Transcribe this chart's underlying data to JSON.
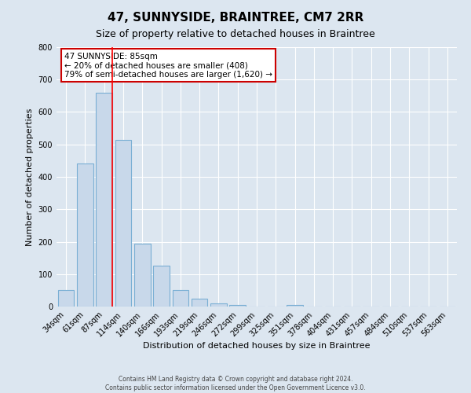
{
  "title": "47, SUNNYSIDE, BRAINTREE, CM7 2RR",
  "subtitle": "Size of property relative to detached houses in Braintree",
  "xlabel": "Distribution of detached houses by size in Braintree",
  "ylabel": "Number of detached properties",
  "bar_labels": [
    "34sqm",
    "61sqm",
    "87sqm",
    "114sqm",
    "140sqm",
    "166sqm",
    "193sqm",
    "219sqm",
    "246sqm",
    "272sqm",
    "299sqm",
    "325sqm",
    "351sqm",
    "378sqm",
    "404sqm",
    "431sqm",
    "457sqm",
    "484sqm",
    "510sqm",
    "537sqm",
    "563sqm"
  ],
  "bar_values": [
    50,
    440,
    660,
    515,
    195,
    127,
    50,
    25,
    10,
    5,
    0,
    0,
    5,
    0,
    0,
    0,
    0,
    0,
    0,
    0,
    0
  ],
  "bar_color": "#c8d8ea",
  "bar_edgecolor": "#7aafd4",
  "bar_linewidth": 0.8,
  "red_line_index": 2,
  "ylim": [
    0,
    800
  ],
  "yticks": [
    0,
    100,
    200,
    300,
    400,
    500,
    600,
    700,
    800
  ],
  "annotation_text": "47 SUNNYSIDE: 85sqm\n← 20% of detached houses are smaller (408)\n79% of semi-detached houses are larger (1,620) →",
  "annotation_box_color": "#ffffff",
  "annotation_box_edgecolor": "#cc0000",
  "footer_line1": "Contains HM Land Registry data © Crown copyright and database right 2024.",
  "footer_line2": "Contains public sector information licensed under the Open Government Licence v3.0.",
  "background_color": "#dce6f0",
  "grid_color": "#ffffff",
  "title_fontsize": 11,
  "subtitle_fontsize": 9,
  "ylabel_fontsize": 8,
  "xlabel_fontsize": 8,
  "tick_fontsize": 7,
  "annotation_fontsize": 7.5,
  "footer_fontsize": 5.5
}
